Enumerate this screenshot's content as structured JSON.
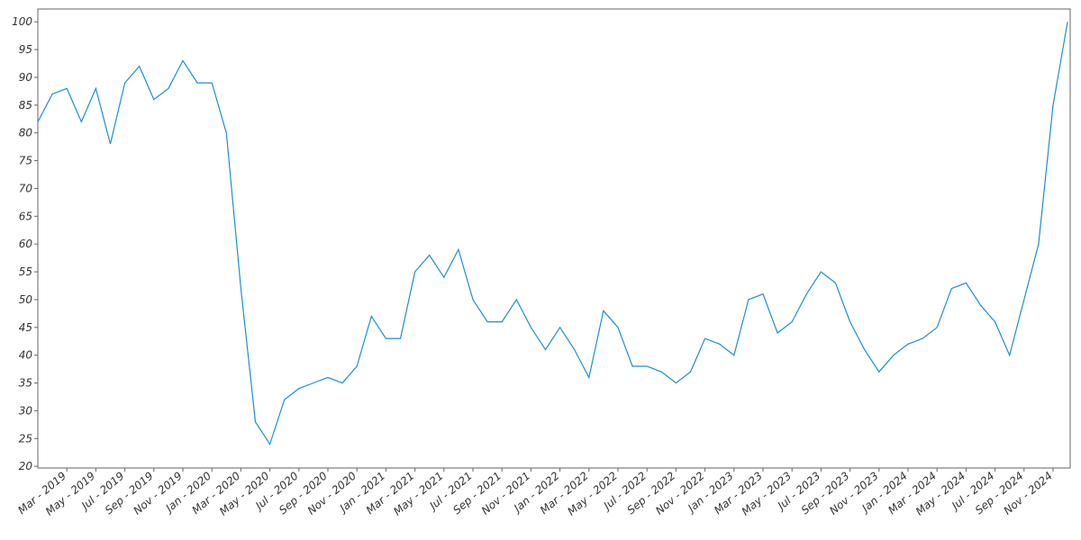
{
  "chart_data": {
    "type": "line",
    "x": [
      "2019-01",
      "2019-02",
      "2019-03",
      "2019-04",
      "2019-05",
      "2019-06",
      "2019-07",
      "2019-08",
      "2019-09",
      "2019-10",
      "2019-11",
      "2019-12",
      "2020-01",
      "2020-02",
      "2020-03",
      "2020-04",
      "2020-05",
      "2020-06",
      "2020-07",
      "2020-08",
      "2020-09",
      "2020-10",
      "2020-11",
      "2020-12",
      "2021-01",
      "2021-02",
      "2021-03",
      "2021-04",
      "2021-05",
      "2021-06",
      "2021-07",
      "2021-08",
      "2021-09",
      "2021-10",
      "2021-11",
      "2021-12",
      "2022-01",
      "2022-02",
      "2022-03",
      "2022-04",
      "2022-05",
      "2022-06",
      "2022-07",
      "2022-08",
      "2022-09",
      "2022-10",
      "2022-11",
      "2022-12",
      "2023-01",
      "2023-02",
      "2023-03",
      "2023-04",
      "2023-05",
      "2023-06",
      "2023-07",
      "2023-08",
      "2023-09",
      "2023-10",
      "2023-11",
      "2023-12",
      "2024-01",
      "2024-02",
      "2024-03",
      "2024-04",
      "2024-05",
      "2024-06",
      "2024-07",
      "2024-08",
      "2024-09",
      "2024-10",
      "2024-11",
      "2024-12"
    ],
    "series": [
      {
        "color": "#1a8fd1",
        "values": [
          82,
          87,
          88,
          82,
          88,
          78,
          89,
          92,
          86,
          88,
          93,
          89,
          89,
          80,
          52,
          28,
          24,
          32,
          34,
          35,
          36,
          35,
          38,
          47,
          43,
          43,
          55,
          58,
          54,
          59,
          50,
          46,
          46,
          50,
          45,
          41,
          45,
          41,
          36,
          48,
          45,
          38,
          38,
          37,
          35,
          37,
          43,
          42,
          40,
          50,
          51,
          44,
          46,
          51,
          55,
          53,
          46,
          41,
          37,
          40,
          42,
          43,
          45,
          52,
          53,
          49,
          46,
          40,
          50,
          60,
          85,
          100
        ]
      }
    ],
    "xlim": [
      "2019-01",
      "2024-12"
    ],
    "xticks": [
      {
        "value": "2019-03",
        "label": "Mar - 2019"
      },
      {
        "value": "2019-05",
        "label": "May - 2019"
      },
      {
        "value": "2019-07",
        "label": "Jul - 2019"
      },
      {
        "value": "2019-09",
        "label": "Sep - 2019"
      },
      {
        "value": "2019-11",
        "label": "Nov - 2019"
      },
      {
        "value": "2020-01",
        "label": "Jan - 2020"
      },
      {
        "value": "2020-03",
        "label": "Mar - 2020"
      },
      {
        "value": "2020-05",
        "label": "May - 2020"
      },
      {
        "value": "2020-07",
        "label": "Jul - 2020"
      },
      {
        "value": "2020-09",
        "label": "Sep - 2020"
      },
      {
        "value": "2020-11",
        "label": "Nov - 2020"
      },
      {
        "value": "2021-01",
        "label": "Jan - 2021"
      },
      {
        "value": "2021-03",
        "label": "Mar - 2021"
      },
      {
        "value": "2021-05",
        "label": "May - 2021"
      },
      {
        "value": "2021-07",
        "label": "Jul - 2021"
      },
      {
        "value": "2021-09",
        "label": "Sep - 2021"
      },
      {
        "value": "2021-11",
        "label": "Nov - 2021"
      },
      {
        "value": "2022-01",
        "label": "Jan - 2022"
      },
      {
        "value": "2022-03",
        "label": "Mar - 2022"
      },
      {
        "value": "2022-05",
        "label": "May - 2022"
      },
      {
        "value": "2022-07",
        "label": "Jul - 2022"
      },
      {
        "value": "2022-09",
        "label": "Sep - 2022"
      },
      {
        "value": "2022-11",
        "label": "Nov - 2022"
      },
      {
        "value": "2023-01",
        "label": "Jan - 2023"
      },
      {
        "value": "2023-03",
        "label": "Mar - 2023"
      },
      {
        "value": "2023-05",
        "label": "May - 2023"
      },
      {
        "value": "2023-07",
        "label": "Jul - 2023"
      },
      {
        "value": "2023-09",
        "label": "Sep - 2023"
      },
      {
        "value": "2023-11",
        "label": "Nov - 2023"
      },
      {
        "value": "2024-01",
        "label": "Jan - 2024"
      },
      {
        "value": "2024-03",
        "label": "Mar - 2024"
      },
      {
        "value": "2024-05",
        "label": "May - 2024"
      },
      {
        "value": "2024-07",
        "label": "Jul - 2024"
      },
      {
        "value": "2024-09",
        "label": "Sep - 2024"
      },
      {
        "value": "2024-11",
        "label": "Nov - 2024"
      }
    ],
    "ylim": [
      19.7,
      102.3
    ],
    "yticks": [
      20,
      25,
      30,
      35,
      40,
      45,
      50,
      55,
      60,
      65,
      70,
      75,
      80,
      85,
      90,
      95,
      100
    ],
    "grid": false
  }
}
